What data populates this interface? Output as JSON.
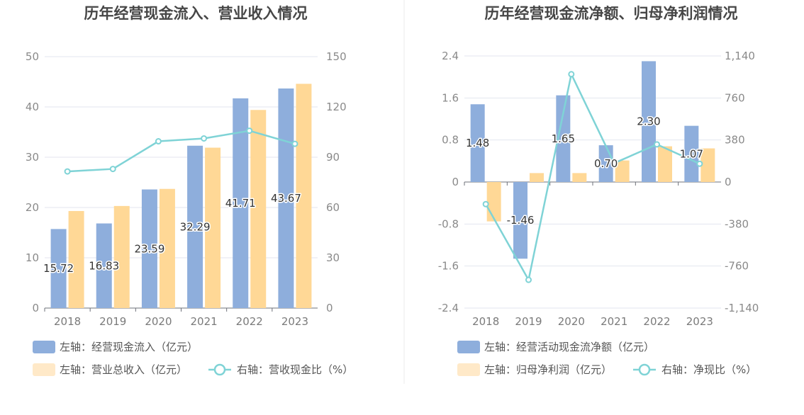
{
  "colors": {
    "bar_blue": "#8eaedc",
    "bar_orange": "#ffd896",
    "line_cyan": "#7fd3d6",
    "legend_orange": "#ffe9c8",
    "grid": "#e3e6ef",
    "divider": "#ebebeb"
  },
  "chart_data": [
    {
      "type": "bar",
      "title": "历年经营现金流入、营业收入情况",
      "categories": [
        "2018",
        "2019",
        "2020",
        "2021",
        "2022",
        "2023"
      ],
      "left_axis": {
        "min": 0,
        "max": 50,
        "ticks": [
          "0",
          "10",
          "20",
          "30",
          "40",
          "50"
        ]
      },
      "right_axis": {
        "min": 0,
        "max": 150,
        "ticks": [
          "0",
          "30",
          "60",
          "90",
          "120",
          "150"
        ]
      },
      "series": [
        {
          "name": "左轴：经营现金流入（亿元）",
          "axis": "left",
          "kind": "bar",
          "color": "#8eaedc",
          "values": [
            15.72,
            16.83,
            23.59,
            32.29,
            41.71,
            43.67
          ],
          "labels": [
            "15.72",
            "16.83",
            "23.59",
            "32.29",
            "41.71",
            "43.67"
          ]
        },
        {
          "name": "左轴：营业总收入（亿元）",
          "axis": "left",
          "kind": "bar",
          "color": "#ffd896",
          "values": [
            19.3,
            20.3,
            23.7,
            31.9,
            39.4,
            44.6
          ]
        },
        {
          "name": "右轴：营收现金比（%）",
          "axis": "right",
          "kind": "line",
          "color": "#7fd3d6",
          "values": [
            81.5,
            83,
            99.5,
            101.2,
            105.8,
            98
          ]
        }
      ]
    },
    {
      "type": "bar",
      "title": "历年经营现金流净额、归母净利润情况",
      "categories": [
        "2018",
        "2019",
        "2020",
        "2021",
        "2022",
        "2023"
      ],
      "left_axis": {
        "min": -2.4,
        "max": 2.4,
        "ticks": [
          "-2.4",
          "-1.6",
          "-0.8",
          "0",
          "0.8",
          "1.6",
          "2.4"
        ]
      },
      "right_axis": {
        "min": -1140,
        "max": 1140,
        "ticks": [
          "-1,140",
          "-760",
          "-380",
          "0",
          "380",
          "760",
          "1,140"
        ]
      },
      "series": [
        {
          "name": "左轴：经营活动现金流净额（亿元）",
          "axis": "left",
          "kind": "bar",
          "color": "#8eaedc",
          "values": [
            1.48,
            -1.46,
            1.65,
            0.7,
            2.3,
            1.07
          ],
          "labels": [
            "1.48",
            "-1.46",
            "1.65",
            "0.70",
            "2.30",
            "1.07"
          ]
        },
        {
          "name": "左轴：归母净利润（亿元）",
          "axis": "left",
          "kind": "bar",
          "color": "#ffd896",
          "values": [
            -0.75,
            0.17,
            0.17,
            0.41,
            0.68,
            0.64
          ]
        },
        {
          "name": "右轴：净现比（%）",
          "axis": "right",
          "kind": "line",
          "color": "#7fd3d6",
          "values": [
            -200,
            -885,
            975,
            170,
            340,
            165
          ]
        }
      ]
    }
  ]
}
